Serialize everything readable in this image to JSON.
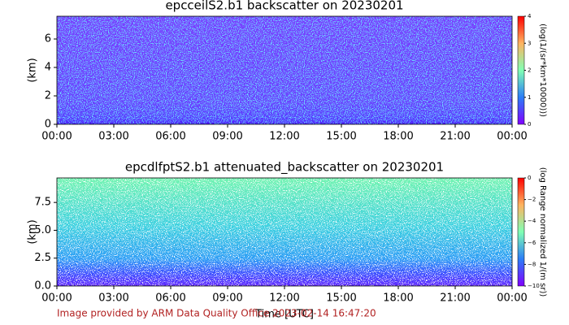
{
  "chart_data": [
    {
      "type": "heatmap",
      "title": "epcceilS2.b1 backscatter on 20230201",
      "ylabel": "(km)",
      "xlim": [
        0,
        24
      ],
      "xticks": [
        {
          "value": 0,
          "label": "00:00"
        },
        {
          "value": 3,
          "label": "03:00"
        },
        {
          "value": 6,
          "label": "06:00"
        },
        {
          "value": 9,
          "label": "09:00"
        },
        {
          "value": 12,
          "label": "12:00"
        },
        {
          "value": 15,
          "label": "15:00"
        },
        {
          "value": 18,
          "label": "18:00"
        },
        {
          "value": 21,
          "label": "21:00"
        },
        {
          "value": 24,
          "label": "00:00"
        }
      ],
      "ylim": [
        0,
        7.6
      ],
      "yticks": [
        0,
        2,
        4,
        6
      ],
      "colormap": "rainbow",
      "clim": [
        0,
        4
      ],
      "cticks": [
        0,
        1,
        2,
        3,
        4
      ],
      "colorbar_label": "(log(1/(sr*km*10000)))"
    },
    {
      "type": "heatmap",
      "title": "epcdlfptS2.b1 attenuated_backscatter on 20230201",
      "ylabel": "(km)",
      "xlabel": "Time [UTC]",
      "xlim": [
        0,
        24
      ],
      "xticks": [
        {
          "value": 0,
          "label": "00:00"
        },
        {
          "value": 3,
          "label": "03:00"
        },
        {
          "value": 6,
          "label": "06:00"
        },
        {
          "value": 9,
          "label": "09:00"
        },
        {
          "value": 12,
          "label": "12:00"
        },
        {
          "value": 15,
          "label": "15:00"
        },
        {
          "value": 18,
          "label": "18:00"
        },
        {
          "value": 21,
          "label": "21:00"
        },
        {
          "value": 24,
          "label": "00:00"
        }
      ],
      "ylim": [
        0,
        9.7
      ],
      "yticks": [
        {
          "value": 0,
          "label": "0.0"
        },
        {
          "value": 2.5,
          "label": "2.5"
        },
        {
          "value": 5,
          "label": "5.0"
        },
        {
          "value": 7.5,
          "label": "7.5"
        }
      ],
      "colormap": "rainbow",
      "clim": [
        -10,
        0
      ],
      "cticks": [
        {
          "value": 0,
          "label": "0"
        },
        {
          "value": -2,
          "label": "−2"
        },
        {
          "value": -4,
          "label": "−4"
        },
        {
          "value": -6,
          "label": "−6"
        },
        {
          "value": -8,
          "label": "−8"
        },
        {
          "value": -10,
          "label": "−10"
        }
      ],
      "colorbar_label": "(log  Range normalized 1/(m sr))"
    }
  ],
  "footer": "Image provided by ARM Data Quality Office 2023-02-14 16:47:20"
}
